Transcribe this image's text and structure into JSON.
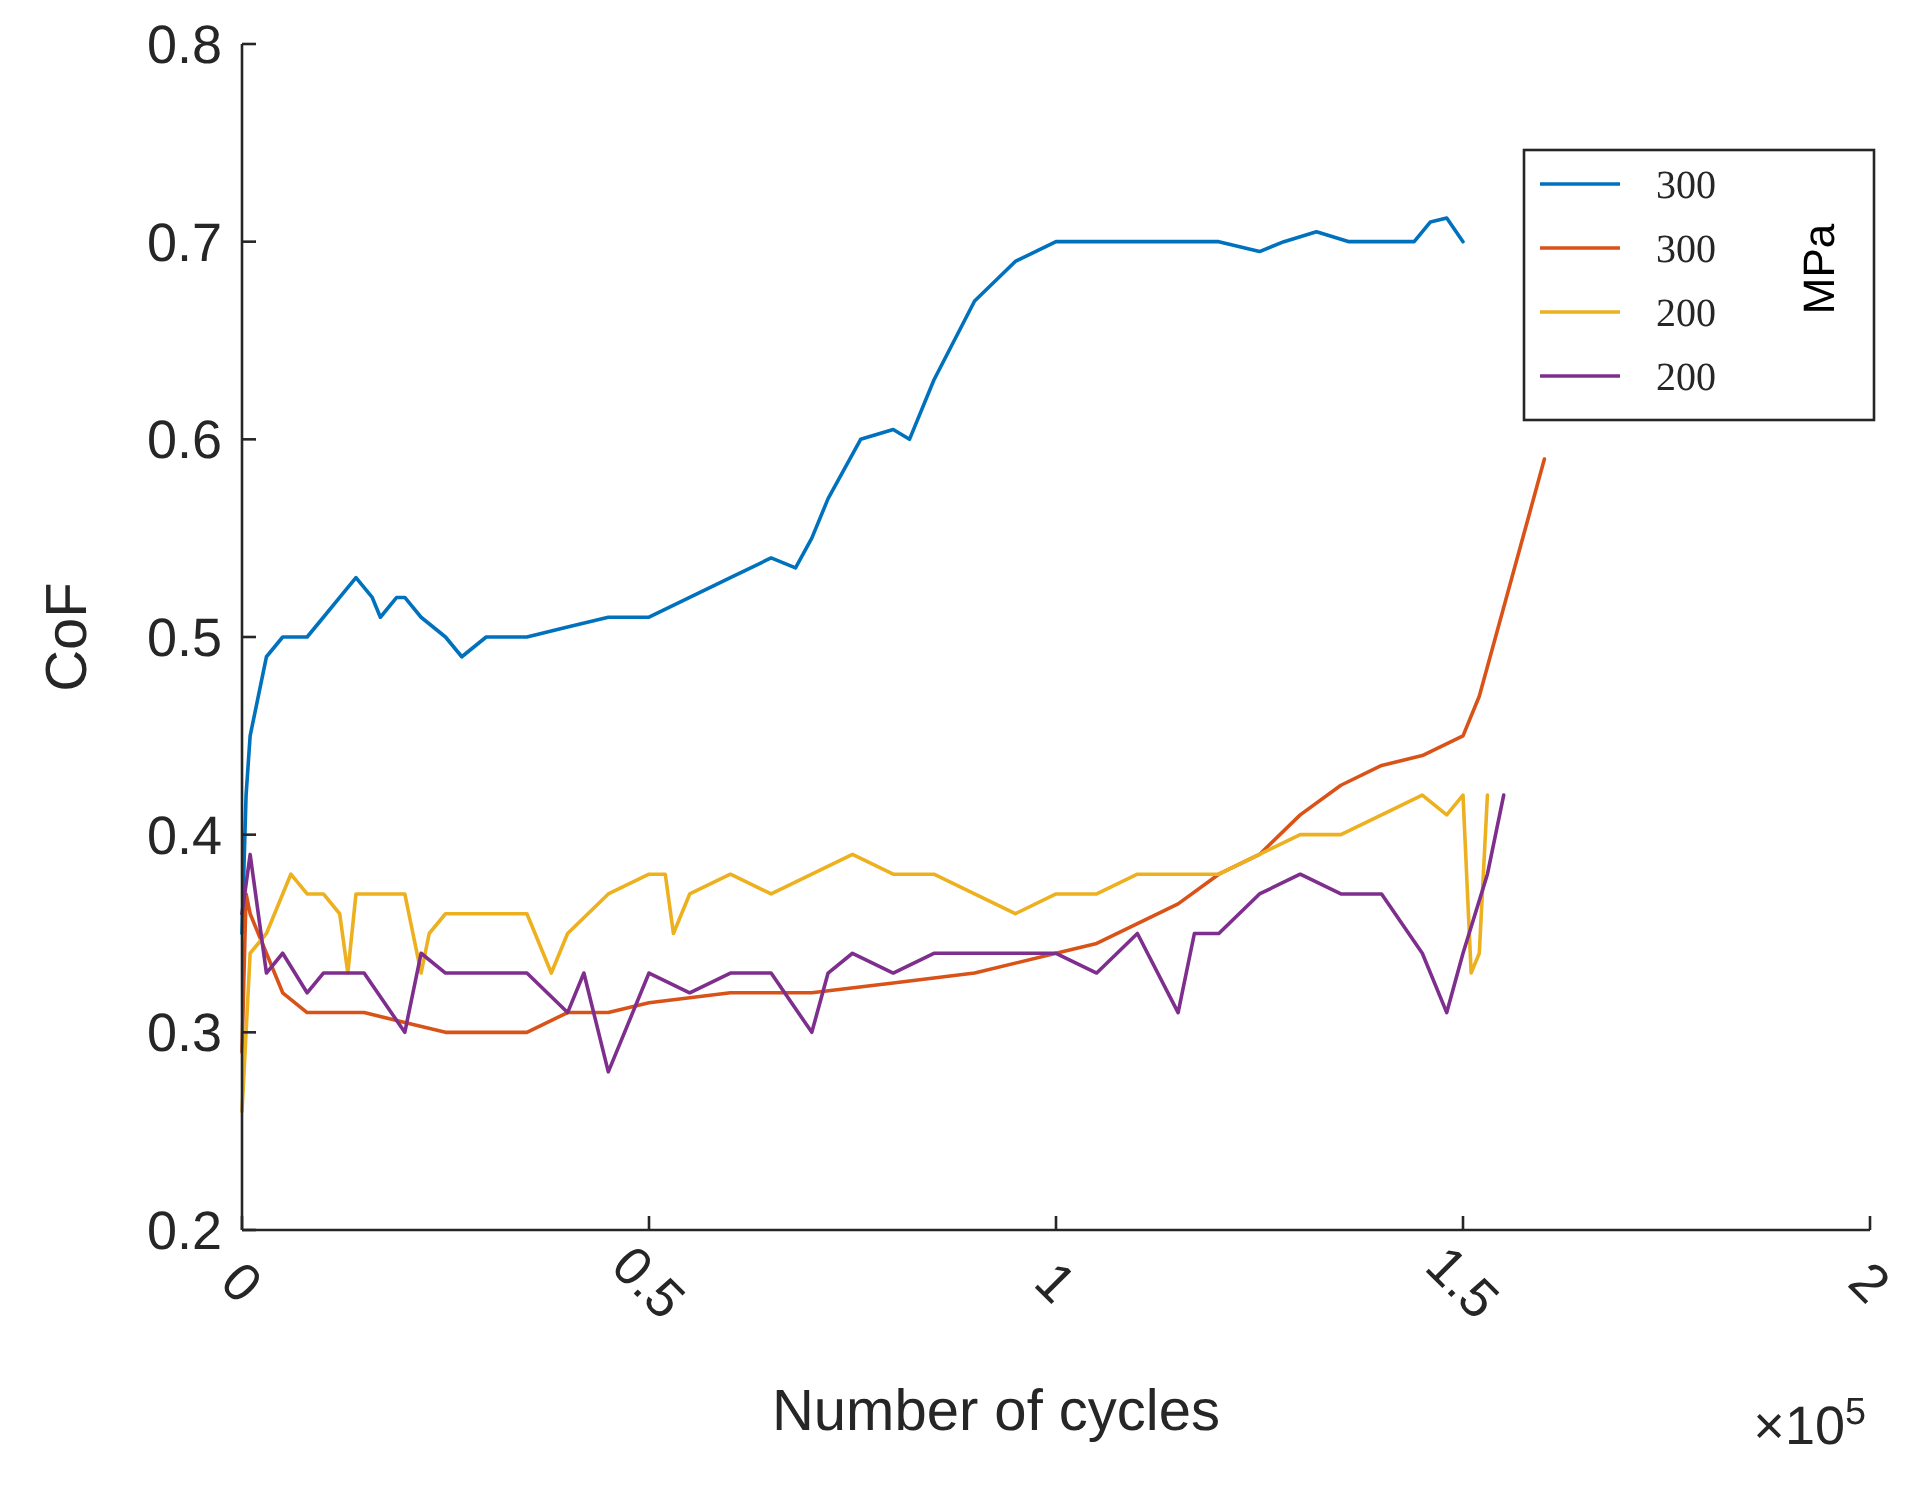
{
  "chart_data": {
    "type": "line",
    "xlabel": "Number of cycles",
    "ylabel": "CoF",
    "annotations": [
      "MPa",
      "×10$^{5}$"
    ],
    "xlim": [
      0,
      2
    ],
    "xticks": [
      0,
      0.5,
      1,
      1.5,
      2
    ],
    "ylim": [
      0.2,
      0.8
    ],
    "yticks": [
      0.2,
      0.3,
      0.4,
      0.5,
      0.6,
      0.7,
      0.8
    ],
    "grid": false,
    "legend": "top right",
    "marker": "none",
    "line_style": "solid",
    "series": [
      {
        "name": "300",
        "color": "#0072bd",
        "x": [
          0,
          0.005,
          0.01,
          0.02,
          0.03,
          0.05,
          0.08,
          0.1,
          0.12,
          0.14,
          0.16,
          0.17,
          0.19,
          0.2,
          0.22,
          0.25,
          0.27,
          0.3,
          0.35,
          0.4,
          0.45,
          0.5,
          0.55,
          0.6,
          0.65,
          0.68,
          0.7,
          0.72,
          0.76,
          0.8,
          0.82,
          0.85,
          0.9,
          0.95,
          1.0,
          1.05,
          1.1,
          1.15,
          1.2,
          1.25,
          1.28,
          1.32,
          1.36,
          1.4,
          1.44,
          1.46,
          1.48,
          1.5
        ],
        "values": [
          0.35,
          0.42,
          0.45,
          0.47,
          0.49,
          0.5,
          0.5,
          0.51,
          0.52,
          0.53,
          0.52,
          0.51,
          0.52,
          0.52,
          0.51,
          0.5,
          0.49,
          0.5,
          0.5,
          0.505,
          0.51,
          0.51,
          0.52,
          0.53,
          0.54,
          0.535,
          0.55,
          0.57,
          0.6,
          0.605,
          0.6,
          0.63,
          0.67,
          0.69,
          0.7,
          0.7,
          0.7,
          0.7,
          0.7,
          0.695,
          0.7,
          0.705,
          0.7,
          0.7,
          0.7,
          0.71,
          0.712,
          0.7
        ]
      },
      {
        "name": "300",
        "color": "#d95319",
        "x": [
          0,
          0.005,
          0.01,
          0.02,
          0.04,
          0.05,
          0.08,
          0.1,
          0.15,
          0.2,
          0.25,
          0.3,
          0.35,
          0.4,
          0.45,
          0.5,
          0.6,
          0.7,
          0.8,
          0.9,
          1.0,
          1.05,
          1.1,
          1.15,
          1.2,
          1.25,
          1.3,
          1.35,
          1.4,
          1.45,
          1.5,
          1.52,
          1.54,
          1.56,
          1.58,
          1.6
        ],
        "values": [
          0.29,
          0.37,
          0.36,
          0.35,
          0.33,
          0.32,
          0.31,
          0.31,
          0.31,
          0.305,
          0.3,
          0.3,
          0.3,
          0.31,
          0.31,
          0.315,
          0.32,
          0.32,
          0.325,
          0.33,
          0.34,
          0.345,
          0.355,
          0.365,
          0.38,
          0.39,
          0.41,
          0.425,
          0.435,
          0.44,
          0.45,
          0.47,
          0.5,
          0.53,
          0.56,
          0.59
        ]
      },
      {
        "name": "200",
        "color": "#edb120",
        "x": [
          0,
          0.01,
          0.03,
          0.06,
          0.08,
          0.1,
          0.12,
          0.13,
          0.14,
          0.18,
          0.2,
          0.22,
          0.23,
          0.25,
          0.3,
          0.35,
          0.37,
          0.38,
          0.4,
          0.45,
          0.5,
          0.52,
          0.53,
          0.55,
          0.6,
          0.65,
          0.7,
          0.75,
          0.8,
          0.85,
          0.9,
          0.95,
          1.0,
          1.05,
          1.1,
          1.15,
          1.2,
          1.25,
          1.3,
          1.35,
          1.4,
          1.45,
          1.48,
          1.5,
          1.51,
          1.52,
          1.53
        ],
        "values": [
          0.26,
          0.34,
          0.35,
          0.38,
          0.37,
          0.37,
          0.36,
          0.33,
          0.37,
          0.37,
          0.37,
          0.33,
          0.35,
          0.36,
          0.36,
          0.36,
          0.34,
          0.33,
          0.35,
          0.37,
          0.38,
          0.38,
          0.35,
          0.37,
          0.38,
          0.37,
          0.38,
          0.39,
          0.38,
          0.38,
          0.37,
          0.36,
          0.37,
          0.37,
          0.38,
          0.38,
          0.38,
          0.39,
          0.4,
          0.4,
          0.41,
          0.42,
          0.41,
          0.42,
          0.33,
          0.34,
          0.42
        ]
      },
      {
        "name": "200",
        "color": "#7e2f8e",
        "x": [
          0,
          0.01,
          0.03,
          0.05,
          0.08,
          0.1,
          0.15,
          0.2,
          0.22,
          0.25,
          0.3,
          0.35,
          0.4,
          0.42,
          0.45,
          0.5,
          0.55,
          0.6,
          0.65,
          0.7,
          0.72,
          0.75,
          0.8,
          0.85,
          0.9,
          1.0,
          1.05,
          1.1,
          1.15,
          1.17,
          1.2,
          1.25,
          1.3,
          1.35,
          1.4,
          1.45,
          1.48,
          1.5,
          1.53,
          1.55
        ],
        "values": [
          0.36,
          0.39,
          0.33,
          0.34,
          0.32,
          0.33,
          0.33,
          0.3,
          0.34,
          0.33,
          0.33,
          0.33,
          0.31,
          0.33,
          0.28,
          0.33,
          0.32,
          0.33,
          0.33,
          0.3,
          0.33,
          0.34,
          0.33,
          0.34,
          0.34,
          0.34,
          0.33,
          0.35,
          0.31,
          0.35,
          0.35,
          0.37,
          0.38,
          0.37,
          0.37,
          0.34,
          0.31,
          0.34,
          0.38,
          0.42
        ]
      }
    ]
  }
}
